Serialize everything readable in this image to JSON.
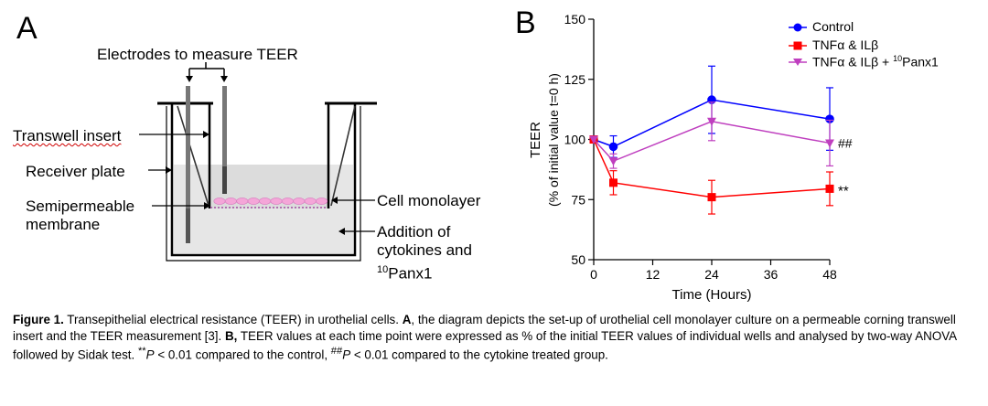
{
  "panel_a": {
    "letter": "A",
    "labels": {
      "electrodes": "Electrodes to measure TEER",
      "transwell_insert": "Transwell insert",
      "receiver_plate": "Receiver plate",
      "semipermeable_1": "Semipermeable",
      "semipermeable_2": "membrane",
      "cell_monolayer": "Cell monolayer",
      "addition_1": "Addition of",
      "addition_2": "cytokines and",
      "panx_sup": "10",
      "panx_text": "Panx1"
    },
    "colors": {
      "cells": "#f4a6d8",
      "medium": "#e6e6e6"
    }
  },
  "panel_b": {
    "letter": "B",
    "legend": {
      "control": "Control",
      "tnf": "TNFα & ILβ",
      "tnf_panx_prefix": "TNFα & ILβ + ",
      "tnf_panx_sup": "10",
      "tnf_panx_suffix": "Panx1"
    },
    "ylabel_1": "TEER",
    "ylabel_2": "(% of initial value t=0 h)",
    "xlabel": "Time (Hours)",
    "sig_panx": "##",
    "sig_tnf": "**"
  },
  "chart_data": {
    "type": "line",
    "x": [
      0,
      4,
      24,
      48
    ],
    "xlim": [
      0,
      48
    ],
    "ylim": [
      50,
      150
    ],
    "xticks": [
      0,
      12,
      24,
      36,
      48
    ],
    "yticks": [
      50,
      75,
      100,
      125,
      150
    ],
    "xlabel": "Time (Hours)",
    "ylabel": "TEER (% of initial value t=0 h)",
    "legend_position": "top-right",
    "series": [
      {
        "name": "Control",
        "color": "#0000ff",
        "marker": "circle",
        "values": [
          100,
          97,
          116.5,
          108.5
        ],
        "errors": [
          0,
          4.5,
          14,
          13
        ]
      },
      {
        "name": "TNFα & ILβ",
        "color": "#ff0000",
        "marker": "square",
        "values": [
          100,
          82,
          76,
          79.5
        ],
        "errors": [
          0,
          5,
          7,
          7
        ]
      },
      {
        "name": "TNFα & ILβ + 10Panx1",
        "color": "#bf3fbf",
        "marker": "triangle-down",
        "values": [
          100,
          91,
          107.5,
          98.5
        ],
        "errors": [
          0,
          3,
          8,
          9.5
        ]
      }
    ]
  },
  "caption": {
    "fig": "Figure 1.",
    "t1": " Transepithelial electrical resistance (TEER) in urothelial cells. ",
    "a": "A",
    "t2": ", the diagram depicts the set-up of urothelial cell monolayer culture on a permeable corning transwell insert and the TEER measurement [3]. ",
    "b": "B,",
    "t3": " TEER values at each time point were expressed as % of the initial TEER values of individual wells and analysed by two-way ANOVA followed by Sidak test. ",
    "p1a": "**",
    "p1b": "P",
    "t4": " < 0.01 compared to the control, ",
    "p2a": "##",
    "p2b": "P",
    "t5": " < 0.01 compared to the cytokine treated group."
  }
}
